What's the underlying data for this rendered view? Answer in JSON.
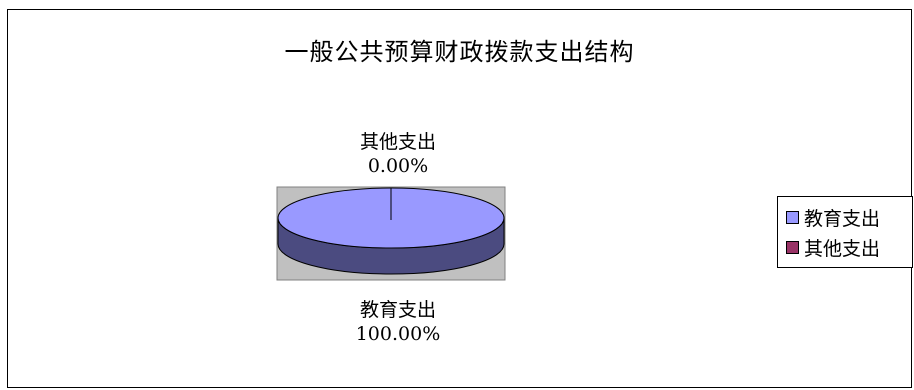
{
  "chart_data": {
    "type": "pie",
    "title": "一般公共预算财政拨款支出结构",
    "categories": [
      "教育支出",
      "其他支出"
    ],
    "values": [
      100.0,
      0.0
    ],
    "slices": [
      {
        "name": "教育支出",
        "value": 100.0,
        "label_name": "教育支出",
        "label_value": "100.00%",
        "color": "#9999ff",
        "side_color": "#4b4b80"
      },
      {
        "name": "其他支出",
        "value": 0.0,
        "label_name": "其他支出",
        "label_value": "0.00%",
        "color": "#993366",
        "side_color": "#4d1a33"
      }
    ],
    "legend": "right",
    "plot_area_color": "#c0c0c0"
  }
}
